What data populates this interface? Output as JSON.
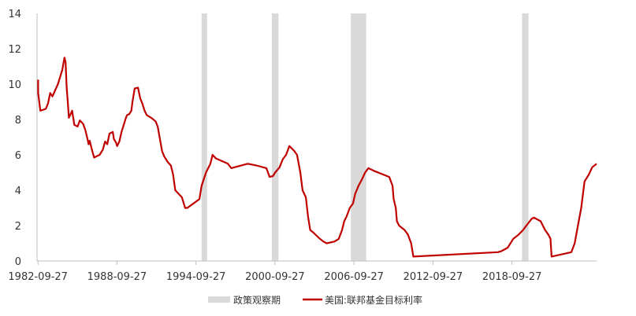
{
  "chart_data": {
    "type": "line",
    "title": "",
    "xlabel": "",
    "ylabel": "",
    "ylim": [
      0,
      14
    ],
    "yticks": [
      "0",
      "2",
      "4",
      "6",
      "8",
      "10",
      "12",
      "14"
    ],
    "xticks": [
      "1982-09-27",
      "1988-09-27",
      "1994-09-27",
      "2000-09-27",
      "2006-09-27",
      "2012-09-27",
      "2018-09-27"
    ],
    "grid": false,
    "legend_position": "bottom",
    "colors": {
      "line": "#c00000",
      "band": "#d9d9d9",
      "axis": "#bfbfbf"
    },
    "bands": {
      "name": "政策观察期",
      "ranges": [
        [
          "1995-03",
          "1995-08"
        ],
        [
          "2000-07",
          "2001-01"
        ],
        [
          "2006-07",
          "2007-09"
        ],
        [
          "2019-07",
          "2020-01"
        ]
      ]
    },
    "series": [
      {
        "name": "美国:联邦基金目标利率",
        "points": [
          [
            "1982-10",
            10.25
          ],
          [
            "1982-10",
            9.5
          ],
          [
            "1982-11",
            9.0
          ],
          [
            "1982-12",
            8.5
          ],
          [
            "1983-05",
            8.6
          ],
          [
            "1983-07",
            8.9
          ],
          [
            "1983-09",
            9.5
          ],
          [
            "1983-11",
            9.3
          ],
          [
            "1984-04",
            10.0
          ],
          [
            "1984-08",
            10.8
          ],
          [
            "1984-10",
            11.5
          ],
          [
            "1984-11",
            11.25
          ],
          [
            "1984-12",
            9.8
          ],
          [
            "1985-01",
            9.0
          ],
          [
            "1985-02",
            8.1
          ],
          [
            "1985-05",
            8.5
          ],
          [
            "1985-07",
            7.7
          ],
          [
            "1985-10",
            7.6
          ],
          [
            "1985-12",
            7.95
          ],
          [
            "1986-03",
            7.75
          ],
          [
            "1986-05",
            7.4
          ],
          [
            "1986-07",
            6.9
          ],
          [
            "1986-08",
            6.6
          ],
          [
            "1986-09",
            6.8
          ],
          [
            "1986-11",
            6.3
          ],
          [
            "1987-01",
            5.85
          ],
          [
            "1987-06",
            6.0
          ],
          [
            "1987-09",
            6.3
          ],
          [
            "1987-11",
            6.75
          ],
          [
            "1988-01",
            6.6
          ],
          [
            "1988-03",
            7.2
          ],
          [
            "1988-06",
            7.3
          ],
          [
            "1988-07",
            6.9
          ],
          [
            "1988-09",
            6.7
          ],
          [
            "1988-10",
            6.5
          ],
          [
            "1988-12",
            6.75
          ],
          [
            "1989-02",
            7.3
          ],
          [
            "1989-04",
            7.7
          ],
          [
            "1989-06",
            8.1
          ],
          [
            "1989-07",
            8.25
          ],
          [
            "1989-09",
            8.3
          ],
          [
            "1989-11",
            8.5
          ],
          [
            "1989-12",
            9.0
          ],
          [
            "1990-02",
            9.75
          ],
          [
            "1990-05",
            9.8
          ],
          [
            "1990-07",
            9.2
          ],
          [
            "1990-09",
            8.9
          ],
          [
            "1990-11",
            8.5
          ],
          [
            "1991-01",
            8.25
          ],
          [
            "1991-05",
            8.1
          ],
          [
            "1991-09",
            7.9
          ],
          [
            "1991-11",
            7.6
          ],
          [
            "1992-01",
            6.9
          ],
          [
            "1992-03",
            6.2
          ],
          [
            "1992-05",
            5.9
          ],
          [
            "1992-08",
            5.6
          ],
          [
            "1992-11",
            5.4
          ],
          [
            "1993-01",
            4.9
          ],
          [
            "1993-03",
            4.0
          ],
          [
            "1993-06",
            3.8
          ],
          [
            "1993-09",
            3.6
          ],
          [
            "1993-12",
            3.0
          ],
          [
            "1994-02",
            3.0
          ],
          [
            "1995-01",
            3.5
          ],
          [
            "1995-03",
            4.25
          ],
          [
            "1995-07",
            5.0
          ],
          [
            "1995-11",
            5.5
          ],
          [
            "1996-01",
            6.0
          ],
          [
            "1996-04",
            5.8
          ],
          [
            "1997-03",
            5.5
          ],
          [
            "1997-06",
            5.25
          ],
          [
            "1998-09",
            5.5
          ],
          [
            "1999-05",
            5.4
          ],
          [
            "2000-02",
            5.25
          ],
          [
            "2000-05",
            4.75
          ],
          [
            "2000-08",
            4.8
          ],
          [
            "2000-10",
            5.0
          ],
          [
            "2001-02",
            5.3
          ],
          [
            "2001-05",
            5.75
          ],
          [
            "2001-08",
            6.0
          ],
          [
            "2001-11",
            6.5
          ],
          [
            "2002-03",
            6.25
          ],
          [
            "2002-06",
            6.0
          ],
          [
            "2002-09",
            5.0
          ],
          [
            "2002-11",
            4.0
          ],
          [
            "2003-02",
            3.6
          ],
          [
            "2003-04",
            2.5
          ],
          [
            "2003-06",
            1.75
          ],
          [
            "2003-09",
            1.6
          ],
          [
            "2004-02",
            1.3
          ],
          [
            "2004-06",
            1.1
          ],
          [
            "2004-09",
            1.0
          ],
          [
            "2005-04",
            1.1
          ],
          [
            "2005-08",
            1.25
          ],
          [
            "2005-11",
            1.75
          ],
          [
            "2006-01",
            2.25
          ],
          [
            "2006-03",
            2.5
          ],
          [
            "2006-06",
            3.0
          ],
          [
            "2006-09",
            3.25
          ],
          [
            "2006-11",
            3.8
          ],
          [
            "2007-02",
            4.25
          ],
          [
            "2007-05",
            4.6
          ],
          [
            "2007-08",
            5.0
          ],
          [
            "2007-11",
            5.25
          ],
          [
            "2008-04",
            5.1
          ],
          [
            "2009-06",
            4.75
          ],
          [
            "2009-09",
            4.25
          ],
          [
            "2009-10",
            3.5
          ],
          [
            "2009-12",
            3.0
          ],
          [
            "2010-01",
            2.25
          ],
          [
            "2010-03",
            2.0
          ],
          [
            "2010-08",
            1.75
          ],
          [
            "2010-11",
            1.5
          ],
          [
            "2011-02",
            1.0
          ],
          [
            "2011-04",
            0.25
          ],
          [
            "2017-09",
            0.5
          ],
          [
            "2017-12",
            0.55
          ],
          [
            "2018-06",
            0.75
          ],
          [
            "2018-11",
            1.25
          ],
          [
            "2019-04",
            1.5
          ],
          [
            "2019-08",
            1.75
          ],
          [
            "2019-11",
            2.0
          ],
          [
            "2020-04",
            2.4
          ],
          [
            "2020-06",
            2.45
          ],
          [
            "2020-12",
            2.25
          ],
          [
            "2021-04",
            1.75
          ],
          [
            "2021-07",
            1.5
          ],
          [
            "2021-09",
            1.25
          ],
          [
            "2021-10",
            0.25
          ],
          [
            "2023-04",
            0.5
          ],
          [
            "2023-07",
            1.0
          ],
          [
            "2023-10",
            2.0
          ],
          [
            "2024-01",
            3.0
          ],
          [
            "2024-04",
            4.5
          ],
          [
            "2024-08",
            4.9
          ],
          [
            "2024-11",
            5.3
          ],
          [
            "2025-03",
            5.5
          ]
        ]
      }
    ]
  }
}
